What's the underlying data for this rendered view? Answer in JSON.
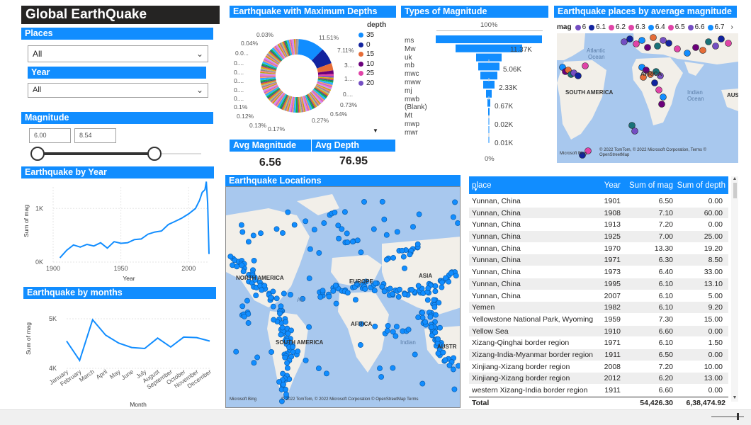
{
  "title": "Global EarthQuake",
  "slicers": {
    "places": {
      "label": "Places",
      "value": "All"
    },
    "year": {
      "label": "Year",
      "value": "All"
    },
    "magnitude": {
      "label": "Magnitude",
      "min": "6.00",
      "max": "8.54"
    }
  },
  "donut": {
    "title": "Earthquake with Maximum Depths",
    "legend_title": "depth",
    "legend": [
      {
        "label": "35",
        "color": "#118DFF"
      },
      {
        "label": "0",
        "color": "#12239E"
      },
      {
        "label": "15",
        "color": "#E66C37"
      },
      {
        "label": "10",
        "color": "#6B007B"
      },
      {
        "label": "25",
        "color": "#E044A7"
      },
      {
        "label": "20",
        "color": "#744EC2"
      }
    ],
    "labels_left": [
      "0.03%",
      "0.04%",
      "0.0...",
      "0....",
      "0....",
      "0....",
      "0....",
      "0....",
      "0.1%",
      "0.12%",
      "0.13%",
      "0.17%"
    ],
    "labels_right": [
      "11.51%",
      "7.11%",
      "3....",
      "1....",
      "0....",
      "0.73%",
      "0.54%",
      "0.27%"
    ]
  },
  "kpis": {
    "avg_magnitude": {
      "label": "Avg Magnitude",
      "value": "6.56"
    },
    "avg_depth": {
      "label": "Avg Depth",
      "value": "76.95"
    }
  },
  "funnel": {
    "title": "Types of Magnitude",
    "top_label": "100%",
    "bottom_label": "0%",
    "categories": [
      "ms",
      "Mw",
      "uk",
      "mb",
      "mwc",
      "mww",
      "mj",
      "mwb",
      "(Blank)",
      "Mt",
      "mwp",
      "mwr"
    ],
    "value_labels": [
      "11.37K",
      "5.06K",
      "2.33K",
      "0.67K",
      "0.02K",
      "0.01K"
    ]
  },
  "avg_map": {
    "title": "Earthquake places by average magnitude",
    "legend_title": "mag",
    "legend": [
      {
        "label": "6",
        "color": "#744EC2"
      },
      {
        "label": "6.1",
        "color": "#12239E"
      },
      {
        "label": "6.2",
        "color": "#E044A7"
      },
      {
        "label": "6.3",
        "color": "#E044A7"
      },
      {
        "label": "6.4",
        "color": "#118DFF"
      },
      {
        "label": "6.5",
        "color": "#E044A7"
      },
      {
        "label": "6.6",
        "color": "#744EC2"
      },
      {
        "label": "6.7",
        "color": "#118DFF"
      }
    ],
    "labels": [
      "Atlantic Ocean",
      "AFRICA",
      "SOUTH AMERICA",
      "Indian Ocean",
      "AUS"
    ],
    "credit": "© 2022 TomTom, © 2022 Microsoft Corporation, Terms © OpenStreetMap",
    "bing": "Microsoft Bing"
  },
  "year_chart": {
    "title": "Earthquake by Year",
    "ylabel": "Sum of mag",
    "xlabel": "Year",
    "yticks": [
      "1K",
      "0K"
    ],
    "xticks": [
      "1900",
      "1950",
      "2000"
    ]
  },
  "month_chart": {
    "title": "Earthquake by months",
    "ylabel": "Sum of mag",
    "xlabel": "Month",
    "yticks": [
      "5K",
      "4K"
    ],
    "xticks": [
      "January",
      "February",
      "March",
      "April",
      "May",
      "June",
      "July",
      "August",
      "September",
      "October",
      "November",
      "December"
    ]
  },
  "loc_map": {
    "title": "Earthquake Locations",
    "labels": [
      "NORTH AMERICA",
      "EUROPE",
      "ASIA",
      "SOUTH AMERICA",
      "AFRICA",
      "AUSTR",
      "Atl",
      "Indian"
    ],
    "credit": "© 2022 TomTom, © 2022 Microsoft Corporation © OpenStreetMap Terms",
    "bing": "Microsoft Bing"
  },
  "table": {
    "headers": [
      "place",
      "Year",
      "Sum of mag",
      "Sum of depth"
    ],
    "rows": [
      [
        "Yunnan, China",
        "1901",
        "6.50",
        "0.00"
      ],
      [
        "Yunnan, China",
        "1908",
        "7.10",
        "60.00"
      ],
      [
        "Yunnan, China",
        "1913",
        "7.20",
        "0.00"
      ],
      [
        "Yunnan, China",
        "1925",
        "7.00",
        "25.00"
      ],
      [
        "Yunnan, China",
        "1970",
        "13.30",
        "19.20"
      ],
      [
        "Yunnan, China",
        "1971",
        "6.30",
        "8.50"
      ],
      [
        "Yunnan, China",
        "1973",
        "6.40",
        "33.00"
      ],
      [
        "Yunnan, China",
        "1995",
        "6.10",
        "13.10"
      ],
      [
        "Yunnan, China",
        "2007",
        "6.10",
        "5.00"
      ],
      [
        "Yemen",
        "1982",
        "6.10",
        "9.20"
      ],
      [
        "Yellowstone National Park, Wyoming",
        "1959",
        "7.30",
        "15.00"
      ],
      [
        "Yellow Sea",
        "1910",
        "6.60",
        "0.00"
      ],
      [
        "Xizang-Qinghai border region",
        "1971",
        "6.10",
        "1.50"
      ],
      [
        "Xizang-India-Myanmar border region",
        "1911",
        "6.50",
        "0.00"
      ],
      [
        "Xinjiang-Xizang border region",
        "2008",
        "7.20",
        "10.00"
      ],
      [
        "Xinjiang-Xizang border region",
        "2012",
        "6.20",
        "13.00"
      ],
      [
        "western Xizang-India border region",
        "1911",
        "6.60",
        "0.00"
      ]
    ],
    "total": [
      "Total",
      "",
      "54,426.30",
      "6,38,474.92"
    ]
  },
  "chart_data": [
    {
      "type": "line",
      "title": "Earthquake by Year",
      "xlabel": "Year",
      "ylabel": "Sum of mag",
      "x": [
        1905,
        1910,
        1915,
        1920,
        1925,
        1930,
        1935,
        1940,
        1945,
        1950,
        1955,
        1960,
        1965,
        1970,
        1975,
        1980,
        1985,
        1990,
        1995,
        2000,
        2005,
        2008,
        2010,
        2012,
        2013,
        2014,
        2015
      ],
      "y": [
        80,
        220,
        320,
        280,
        330,
        300,
        360,
        260,
        380,
        350,
        360,
        420,
        430,
        520,
        560,
        580,
        700,
        760,
        820,
        900,
        1000,
        1150,
        1300,
        1350,
        1500,
        1100,
        150
      ],
      "ylim": [
        0,
        1400
      ]
    },
    {
      "type": "line",
      "title": "Earthquake by months",
      "xlabel": "Month",
      "ylabel": "Sum of mag",
      "categories": [
        "January",
        "February",
        "March",
        "April",
        "May",
        "June",
        "July",
        "August",
        "September",
        "October",
        "November",
        "December"
      ],
      "values": [
        4550,
        4160,
        4980,
        4670,
        4510,
        4420,
        4400,
        4610,
        4430,
        4630,
        4620,
        4550
      ],
      "ylim": [
        4000,
        5200
      ]
    }
  ]
}
